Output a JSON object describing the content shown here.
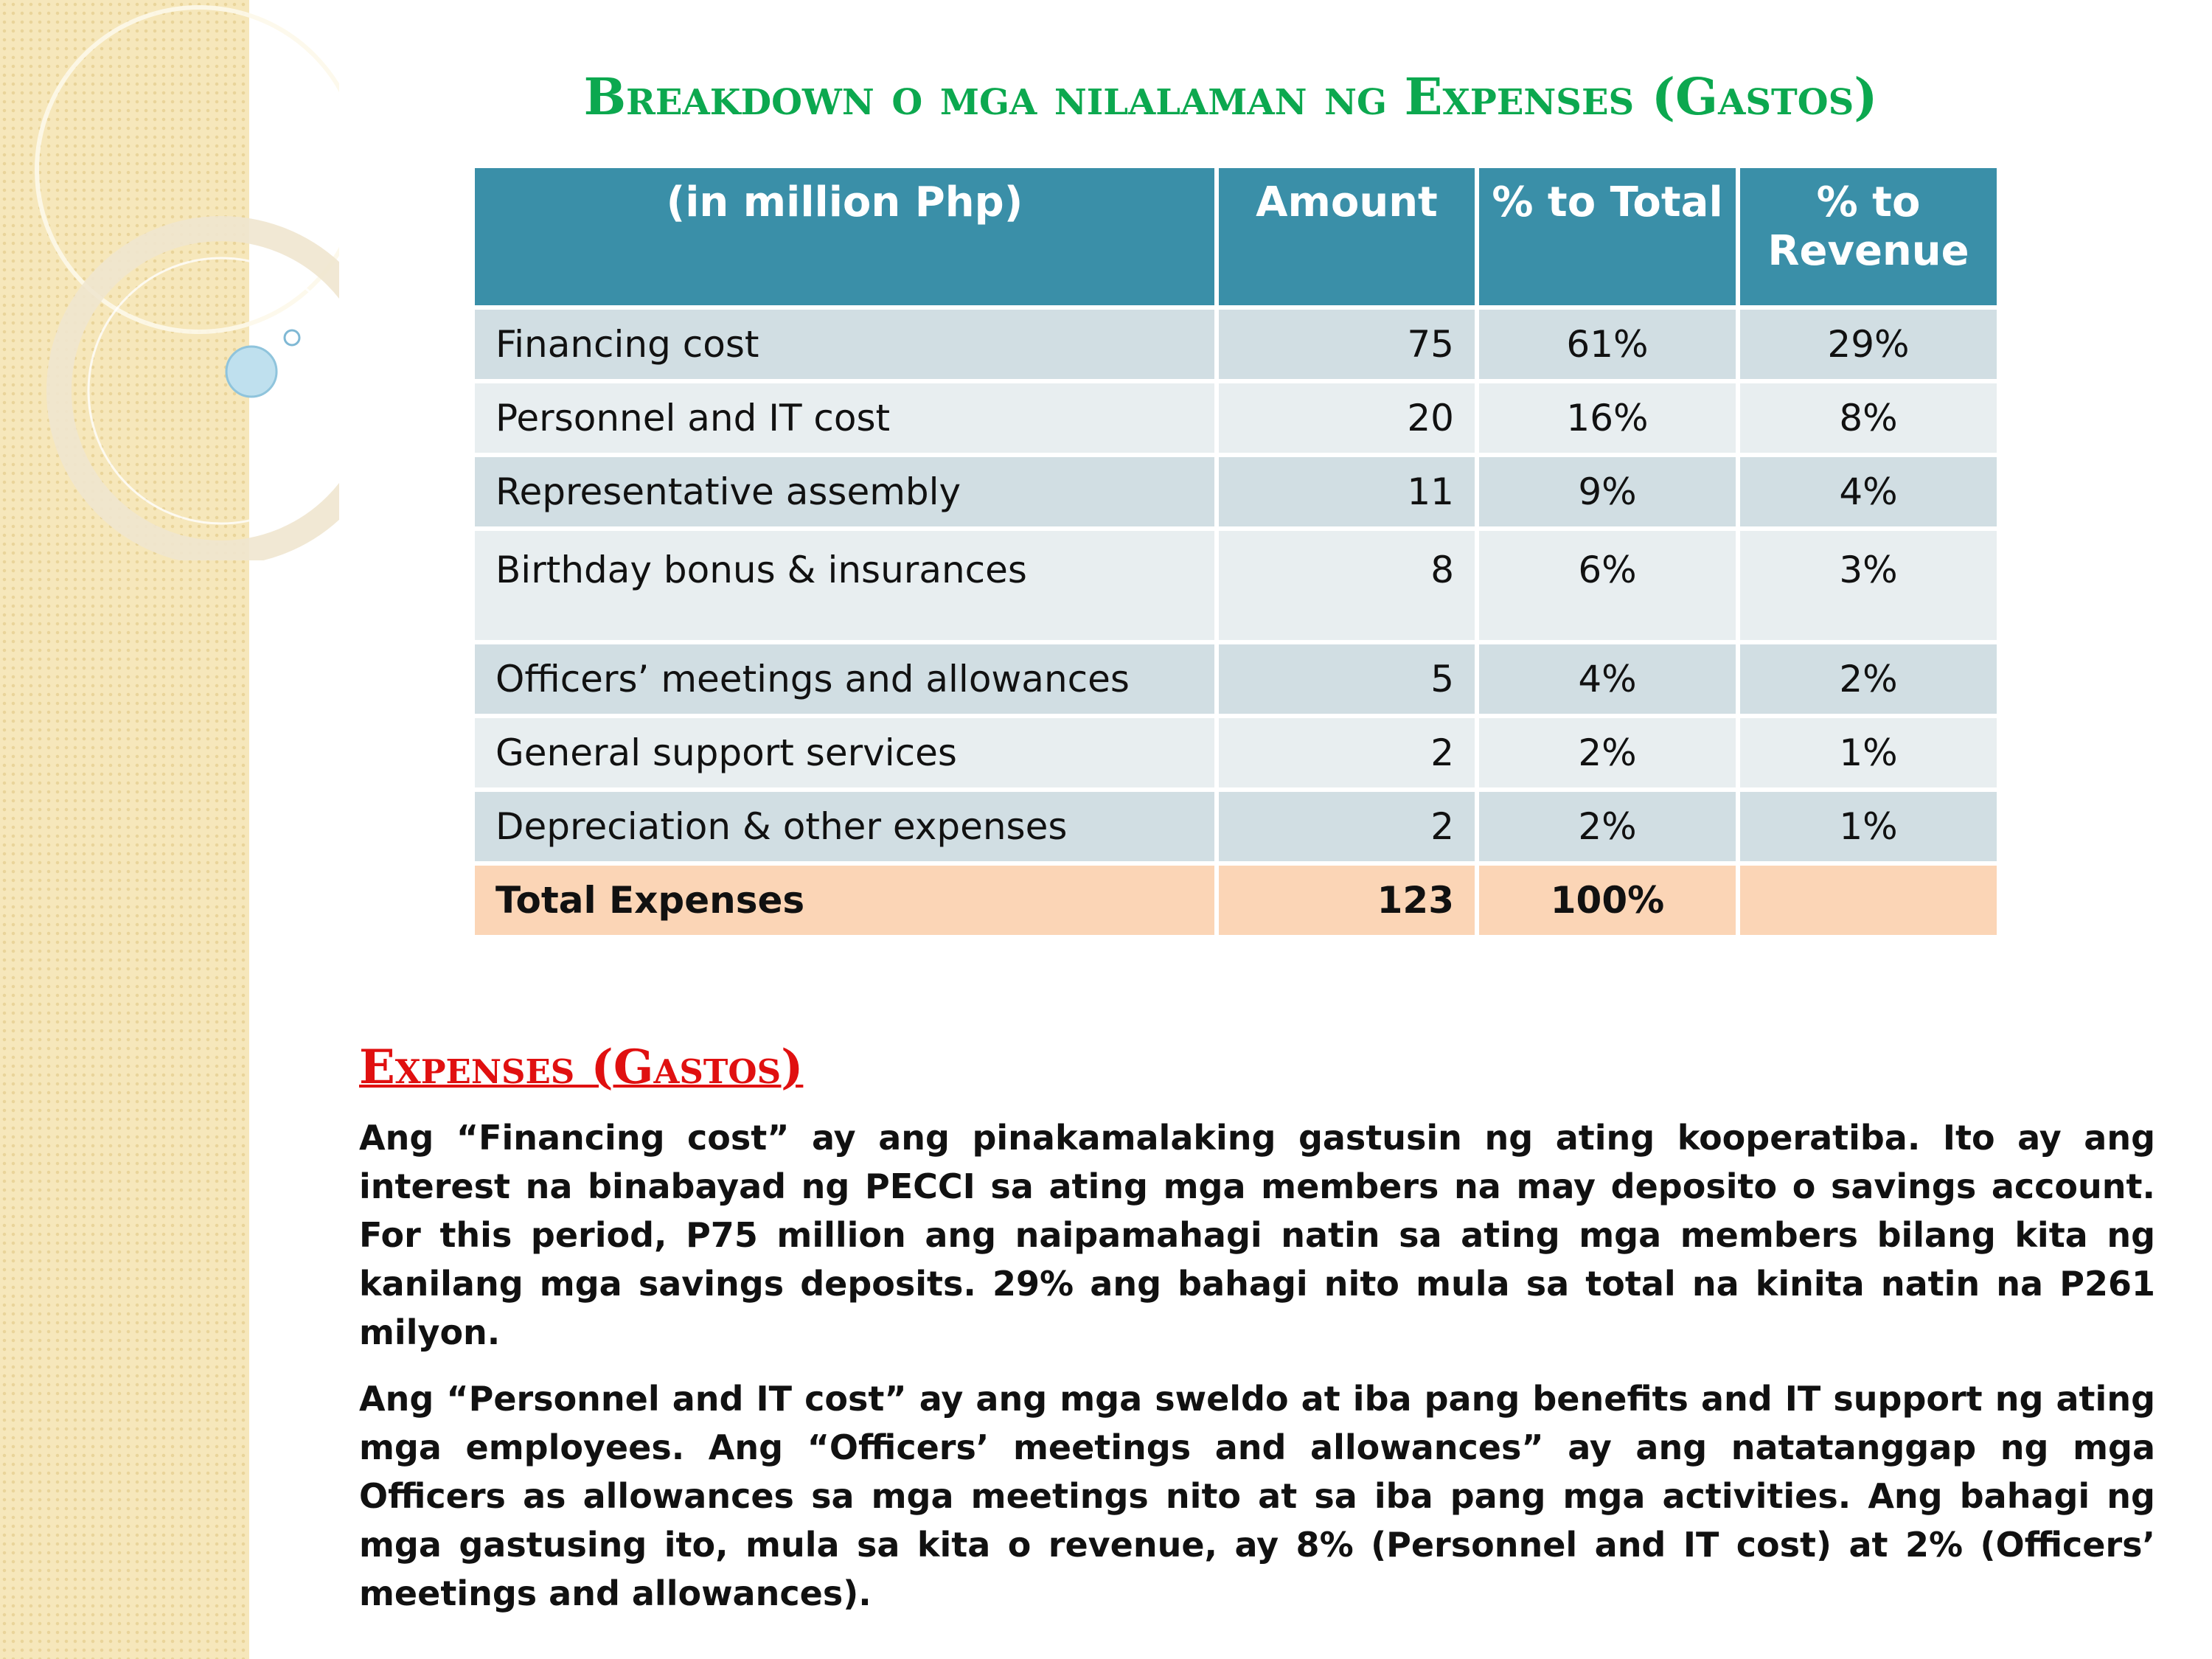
{
  "title": "Breakdown o mga nilalaman ng Expenses (Gastos)",
  "table": {
    "header": [
      "(in million Php)",
      "Amount",
      "% to Total",
      "% to Revenue"
    ],
    "rows": [
      {
        "label": "Financing cost",
        "amount": 75,
        "pct_total": "61%",
        "pct_revenue": "29%"
      },
      {
        "label": "Personnel and IT cost",
        "amount": 20,
        "pct_total": "16%",
        "pct_revenue": "8%"
      },
      {
        "label": "Representative assembly",
        "amount": 11,
        "pct_total": "9%",
        "pct_revenue": "4%"
      },
      {
        "label": "Birthday bonus & insurances",
        "amount": 8,
        "pct_total": "6%",
        "pct_revenue": "3%"
      },
      {
        "label": "Officers’ meetings and allowances",
        "amount": 5,
        "pct_total": "4%",
        "pct_revenue": "2%"
      },
      {
        "label": "General support services",
        "amount": 2,
        "pct_total": "2%",
        "pct_revenue": "1%"
      },
      {
        "label": "Depreciation & other expenses",
        "amount": 2,
        "pct_total": "2%",
        "pct_revenue": "1%"
      }
    ],
    "total": {
      "label": "Total Expenses",
      "amount": 123,
      "pct_total": "100%"
    }
  },
  "section": {
    "heading": "Expenses (Gastos)",
    "paragraphs": [
      "Ang “Financing cost” ay ang pinakamalaking gastusin ng ating kooperatiba.  Ito ay ang interest na binabayad ng PECCI sa ating mga members na may deposito o savings account.  For this period, P75 million ang naipamahagi natin sa ating mga members bilang kita ng kanilang mga savings deposits.  29% ang bahagi nito mula sa total na kinita natin na P261 milyon.",
      "Ang “Personnel and IT cost” ay ang mga sweldo at iba pang benefits and IT support ng ating mga employees.  Ang “Officers’ meetings and allowances” ay ang natatanggap ng mga Officers as allowances sa mga meetings nito at sa iba pang mga activities. Ang bahagi ng mga gastusing ito, mula sa kita o revenue, ay 8% (Personnel and IT cost) at 2% (Officers’ meetings and allowances)."
    ]
  }
}
